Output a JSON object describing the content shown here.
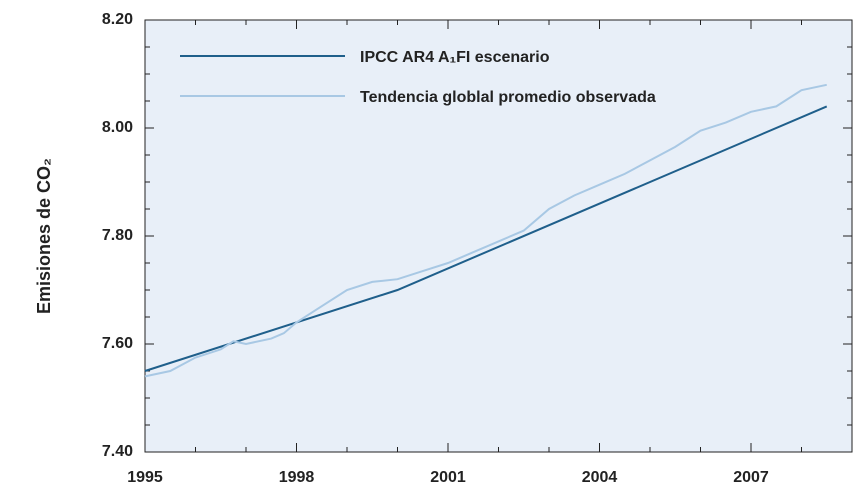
{
  "chart_data": {
    "type": "line",
    "y_label": "Emisiones de CO₂",
    "xlim": [
      1995,
      2009
    ],
    "xticks": [
      1995,
      1998,
      2001,
      2004,
      2007
    ],
    "xminor_ticks": [
      1996,
      1997,
      1999,
      2000,
      2002,
      2003,
      2005,
      2006,
      2008
    ],
    "ylim": [
      7.4,
      8.2
    ],
    "yticks": [
      {
        "value": 7.4,
        "label": "7.40"
      },
      {
        "value": 7.6,
        "label": "7.60"
      },
      {
        "value": 7.8,
        "label": "7.80"
      },
      {
        "value": 8.0,
        "label": "8.00"
      },
      {
        "value": 8.2,
        "label": "8.20"
      }
    ],
    "yminor_ticks": [
      7.45,
      7.5,
      7.55,
      7.65,
      7.7,
      7.75,
      7.85,
      7.9,
      7.95,
      8.05,
      8.1,
      8.15
    ],
    "background": "#e8eff8",
    "legend": "upper left",
    "series": [
      {
        "name": "IPCC AR4 A₁FI escenario",
        "color": "#1f5f8b",
        "x": [
          1995,
          2000,
          2008.5
        ],
        "values": [
          7.55,
          7.7,
          8.04
        ]
      },
      {
        "name": "Tendencia globlal promedio observada",
        "color": "#a8c8e4",
        "x": [
          1995,
          1995.5,
          1996,
          1996.5,
          1996.75,
          1997,
          1997.5,
          1997.75,
          1998,
          1998.5,
          1999,
          1999.5,
          2000,
          2000.5,
          2001,
          2001.5,
          2002,
          2002.5,
          2003,
          2003.5,
          2004,
          2004.5,
          2005,
          2005.5,
          2006,
          2006.5,
          2007,
          2007.5,
          2008,
          2008.5
        ],
        "values": [
          7.54,
          7.55,
          7.575,
          7.59,
          7.605,
          7.6,
          7.61,
          7.62,
          7.64,
          7.67,
          7.7,
          7.715,
          7.72,
          7.735,
          7.75,
          7.77,
          7.79,
          7.81,
          7.85,
          7.875,
          7.895,
          7.915,
          7.94,
          7.965,
          7.995,
          8.01,
          8.03,
          8.04,
          8.07,
          8.08
        ]
      }
    ]
  }
}
